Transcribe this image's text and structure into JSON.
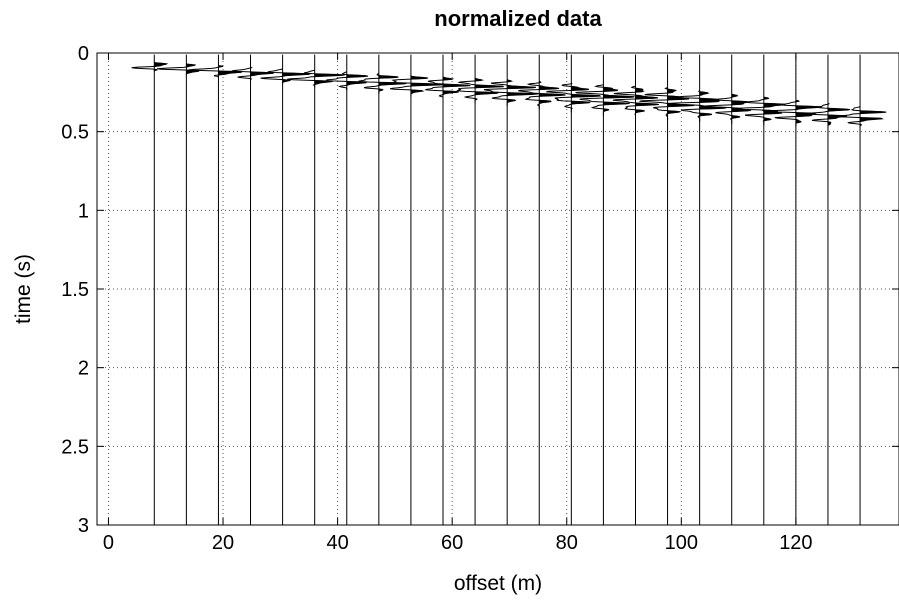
{
  "chart_data": {
    "type": "seismic-wiggle",
    "title": "normalized data",
    "xlabel": "offset (m)",
    "ylabel": "time (s)",
    "xlim": [
      -2,
      138
    ],
    "ylim": [
      0,
      3
    ],
    "y_reversed": true,
    "xticks": [
      0,
      20,
      40,
      60,
      80,
      100,
      120
    ],
    "xtick_labels": [
      "0",
      "20",
      "40",
      "60",
      "80",
      "100",
      "120"
    ],
    "yticks": [
      0,
      0.5,
      1,
      1.5,
      2,
      2.5,
      3
    ],
    "ytick_labels": [
      "0",
      "0.5",
      "1",
      "1.5",
      "2",
      "2.5",
      "3"
    ],
    "grid": true,
    "trace_offsets": [
      8,
      13.6,
      19.2,
      24.8,
      30.4,
      36,
      41.6,
      47.2,
      52.8,
      58.4,
      64,
      69.6,
      75.2,
      80.8,
      86.4,
      92,
      97.6,
      103.2,
      108.8,
      114.4,
      120,
      125.6,
      131.2
    ],
    "first_arrival_times": [
      0.06,
      0.07,
      0.08,
      0.09,
      0.1,
      0.11,
      0.12,
      0.13,
      0.14,
      0.15,
      0.16,
      0.17,
      0.18,
      0.19,
      0.2,
      0.21,
      0.22,
      0.24,
      0.26,
      0.28,
      0.3,
      0.32,
      0.34
    ],
    "energy_end_times": [
      0.12,
      0.14,
      0.16,
      0.18,
      0.2,
      0.22,
      0.24,
      0.26,
      0.28,
      0.3,
      0.32,
      0.34,
      0.36,
      0.38,
      0.4,
      0.42,
      0.43,
      0.44,
      0.45,
      0.46,
      0.47,
      0.48,
      0.48
    ]
  }
}
